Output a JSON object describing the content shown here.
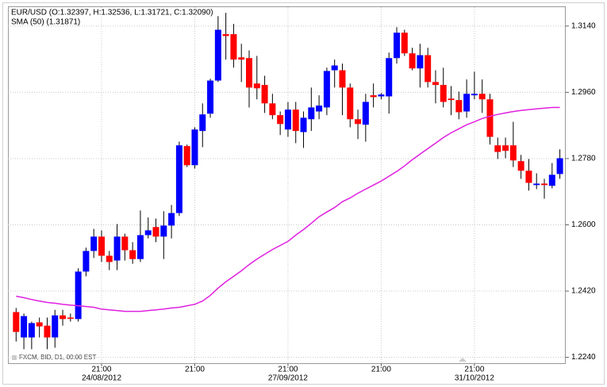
{
  "chart_data": {
    "type": "candlestick",
    "title": "EUR/USD (O:1.32397, H:1.32536, L:1.31721, C:1.32090)",
    "source": "FXCM, BID, D1, 00:00 EST",
    "up_color": "#0000ff",
    "down_color": "#ff0000",
    "open": [
      1.2363,
      1.2294,
      1.2294,
      1.2335,
      1.2326,
      1.2294,
      1.2354,
      1.2348,
      1.2344,
      1.2473,
      1.2529,
      1.2568,
      1.2516,
      1.2503,
      1.2568,
      1.2531,
      1.2507,
      1.2572,
      1.2594,
      1.2568,
      1.2598,
      1.2632,
      1.2814,
      1.2762,
      1.2855,
      1.2902,
      1.2992,
      1.3118,
      1.3118,
      1.3055,
      1.3053,
      1.2984,
      1.298,
      1.293,
      1.2898,
      1.2859,
      1.2913,
      1.2852,
      1.2887,
      1.2908,
      1.2919,
      1.302,
      1.302,
      1.2973,
      1.2887,
      1.2872,
      1.2952,
      1.2949,
      1.2949,
      1.3053,
      1.3122,
      1.3066,
      1.3025,
      1.3061,
      1.2988,
      1.298,
      1.2943,
      1.2939,
      1.2908,
      1.2952,
      1.2956,
      1.2941,
      1.2816,
      1.2816,
      1.2816,
      1.2773,
      1.2747,
      1.2708,
      1.2712,
      1.2706,
      1.2738
    ],
    "high": [
      1.2374,
      1.2359,
      1.2337,
      1.2348,
      1.2348,
      1.2369,
      1.2369,
      1.2359,
      1.2482,
      1.2538,
      1.2589,
      1.2585,
      1.2529,
      1.2602,
      1.2576,
      1.2553,
      1.2639,
      1.262,
      1.2617,
      1.2637,
      1.2654,
      1.2826,
      1.2818,
      1.2865,
      1.293,
      1.2997,
      1.3167,
      1.3176,
      1.3146,
      1.3092,
      1.3074,
      1.3059,
      1.3005,
      1.2956,
      1.2908,
      1.2934,
      1.2934,
      1.2908,
      1.2973,
      1.2952,
      1.3027,
      1.3049,
      1.3038,
      1.2984,
      1.2913,
      1.2956,
      1.2984,
      1.2958,
      1.3068,
      1.3137,
      1.313,
      1.3081,
      1.3092,
      1.3081,
      1.302,
      1.3027,
      1.2977,
      1.2962,
      1.2995,
      1.3016,
      1.2995,
      1.2956,
      1.2837,
      1.2837,
      1.288,
      1.279,
      1.2779,
      1.274,
      1.2725,
      1.2768,
      1.2805
    ],
    "low": [
      1.2283,
      1.2262,
      1.2262,
      1.2294,
      1.2262,
      1.2266,
      1.2326,
      1.2337,
      1.2337,
      1.246,
      1.251,
      1.2499,
      1.2477,
      1.2477,
      1.2503,
      1.2494,
      1.2499,
      1.2563,
      1.2553,
      1.2507,
      1.2563,
      1.2624,
      1.2757,
      1.2753,
      1.2811,
      1.2891,
      1.2988,
      1.3049,
      1.3027,
      1.2988,
      1.2919,
      1.2941,
      1.2904,
      1.2887,
      1.2844,
      1.2839,
      1.2822,
      1.2809,
      1.2855,
      1.2887,
      1.2898,
      1.2973,
      1.2898,
      1.2865,
      1.2833,
      1.2826,
      1.2919,
      1.2941,
      1.2902,
      1.3038,
      1.3059,
      1.302,
      1.2973,
      1.2973,
      1.293,
      1.2919,
      1.2898,
      1.2887,
      1.2891,
      1.2941,
      1.2904,
      1.2818,
      1.2779,
      1.2781,
      1.2757,
      1.2725,
      1.2693,
      1.2697,
      1.2671,
      1.2699,
      1.2725
    ],
    "close": [
      1.2309,
      1.2352,
      1.2333,
      1.2324,
      1.2294,
      1.2354,
      1.2344,
      1.2346,
      1.2473,
      1.2529,
      1.2568,
      1.2516,
      1.2499,
      1.2568,
      1.2531,
      1.2507,
      1.2572,
      1.2585,
      1.2568,
      1.2598,
      1.2632,
      1.2816,
      1.2762,
      1.2859,
      1.29,
      1.2992,
      1.313,
      1.3113,
      1.3049,
      1.3049,
      1.2973,
      1.2971,
      1.293,
      1.2898,
      1.2874,
      1.2913,
      1.2855,
      1.2891,
      1.2919,
      1.2924,
      1.3018,
      1.3033,
      1.2973,
      1.2887,
      1.2874,
      1.2934,
      1.2947,
      1.2954,
      1.3053,
      1.3122,
      1.3066,
      1.3025,
      1.3061,
      1.2988,
      1.298,
      1.2934,
      1.2939,
      1.2906,
      1.2956,
      1.2956,
      1.2941,
      1.2839,
      1.2798,
      1.2801,
      1.2775,
      1.2747,
      1.2714,
      1.2712,
      1.2708,
      1.2736,
      1.2781
    ],
    "series": [
      {
        "name": "SMA (50) (1.31871)",
        "color": "#e020e0",
        "values": [
          1.2406,
          1.2402,
          1.2397,
          1.2393,
          1.2389,
          1.2387,
          1.2384,
          1.2382,
          1.238,
          1.2378,
          1.2376,
          1.2371,
          1.2369,
          1.2367,
          1.2365,
          1.2365,
          1.2365,
          1.2367,
          1.2369,
          1.2371,
          1.2374,
          1.2376,
          1.238,
          1.2384,
          1.2393,
          1.2408,
          1.2428,
          1.2445,
          1.246,
          1.2475,
          1.2492,
          1.2507,
          1.252,
          1.2533,
          1.2544,
          1.2555,
          1.2572,
          1.2587,
          1.2604,
          1.2622,
          1.2635,
          1.2647,
          1.2663,
          1.2673,
          1.2686,
          1.2697,
          1.2708,
          1.2719,
          1.2732,
          1.2745,
          1.276,
          1.2777,
          1.2792,
          1.2807,
          1.2822,
          1.2837,
          1.285,
          1.2861,
          1.2872,
          1.288,
          1.2889,
          1.2895,
          1.29,
          1.2904,
          1.2908,
          1.2911,
          1.2913,
          1.2915,
          1.2917,
          1.2919,
          1.2919
        ]
      }
    ],
    "xticks": [
      {
        "value": 11,
        "label": "21:00",
        "date": "24/08/2012"
      },
      {
        "value": 23,
        "label": "21:00"
      },
      {
        "value": 35,
        "label": "21:00",
        "date": "27/09/2012"
      },
      {
        "value": 47,
        "label": "21:00"
      },
      {
        "value": 59,
        "label": "21:00",
        "date": "31/10/2012"
      }
    ],
    "ylim": [
      1.2224,
      1.3185
    ],
    "yticks": [
      {
        "value": 1.224,
        "label": "1.2240"
      },
      {
        "value": 1.242,
        "label": "1.2420"
      },
      {
        "value": 1.26,
        "label": "1.2600"
      },
      {
        "value": 1.278,
        "label": "1.2780"
      },
      {
        "value": 1.296,
        "label": "1.2960"
      },
      {
        "value": 1.314,
        "label": "1.3140"
      }
    ],
    "grid": true
  }
}
